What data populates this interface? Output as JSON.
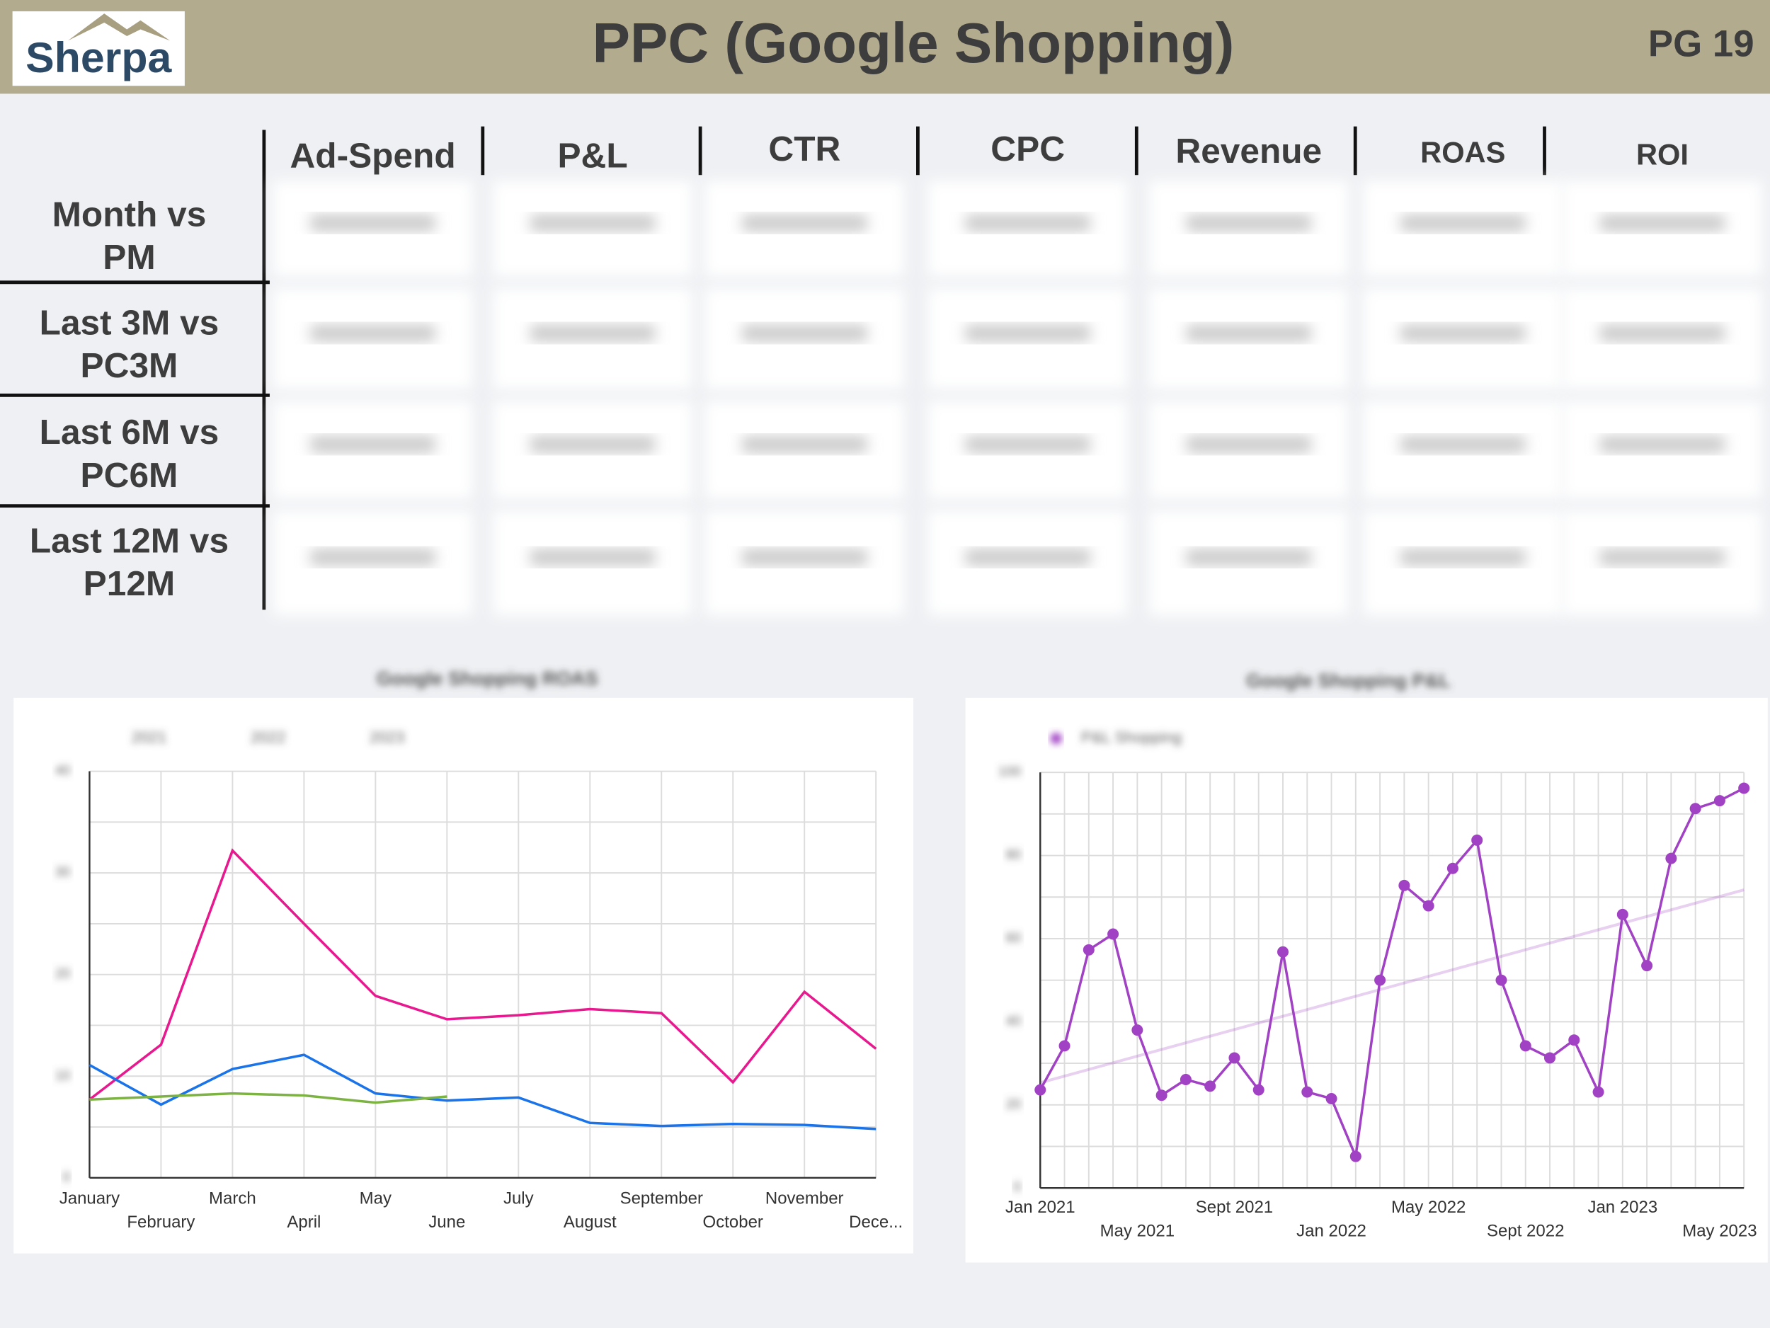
{
  "header": {
    "logo": "Sherpa",
    "title": "PPC (Google Shopping)",
    "page": "PG 19"
  },
  "table": {
    "columns": [
      "Ad-Spend",
      "P&L",
      "CTR",
      "CPC",
      "Revenue",
      "ROAS",
      "ROI"
    ],
    "rows": [
      "Month vs PM",
      "Last 3M vs PC3M",
      "Last 6M vs PC6M",
      "Last 12M vs P12M"
    ]
  },
  "chart_data": [
    {
      "type": "line",
      "title": "Google Shopping ROAS",
      "categories": [
        "January",
        "February",
        "March",
        "April",
        "May",
        "June",
        "July",
        "August",
        "September",
        "October",
        "November",
        "Dece..."
      ],
      "series": [
        {
          "name": "2021",
          "color": "#e8188f",
          "values": [
            7.7,
            13.1,
            32.2,
            25,
            17.9,
            15.6,
            16,
            16.6,
            16.2,
            9.4,
            18.3,
            12.7
          ]
        },
        {
          "name": "2022",
          "color": "#1a73e8",
          "values": [
            11.1,
            7.2,
            10.7,
            12.1,
            8.3,
            7.6,
            7.9,
            5.4,
            5.1,
            5.3,
            5.2,
            4.8
          ]
        },
        {
          "name": "2023",
          "color": "#7cb342",
          "values": [
            7.7,
            8.0,
            8.3,
            8.1,
            7.4,
            8.0,
            null,
            null,
            null,
            null,
            null,
            null
          ]
        }
      ],
      "ylim": [
        0,
        40
      ],
      "yticks": [
        0,
        10,
        20,
        30,
        40
      ],
      "grid": true,
      "markers": false,
      "trendline": false
    },
    {
      "type": "line",
      "title": "Google Shopping P&L",
      "categories": [
        "Jan 2021",
        null,
        null,
        null,
        "May 2021",
        null,
        null,
        null,
        "Sept 2021",
        null,
        null,
        null,
        "Jan 2022",
        null,
        null,
        null,
        "May 2022",
        null,
        null,
        null,
        "Sept 2022",
        null,
        null,
        null,
        "Jan 2023",
        null,
        null,
        null,
        "May 2023",
        null
      ],
      "series": [
        {
          "name": "P&L Shopping",
          "color": "#a142c4",
          "values": [
            23.6,
            34.2,
            57.3,
            61.1,
            38.0,
            22.3,
            26.1,
            24.5,
            31.3,
            23.6,
            56.8,
            23.1,
            21.5,
            7.6,
            50.0,
            72.8,
            67.9,
            76.9,
            83.7,
            50.0,
            34.2,
            31.3,
            35.6,
            23.1,
            65.8,
            53.5,
            79.3,
            91.3,
            93.2,
            96.2
          ]
        }
      ],
      "ylim": [
        0,
        100
      ],
      "yticks": [
        0,
        20,
        40,
        60,
        80,
        100
      ],
      "grid": true,
      "markers": true,
      "trendline": true
    }
  ]
}
